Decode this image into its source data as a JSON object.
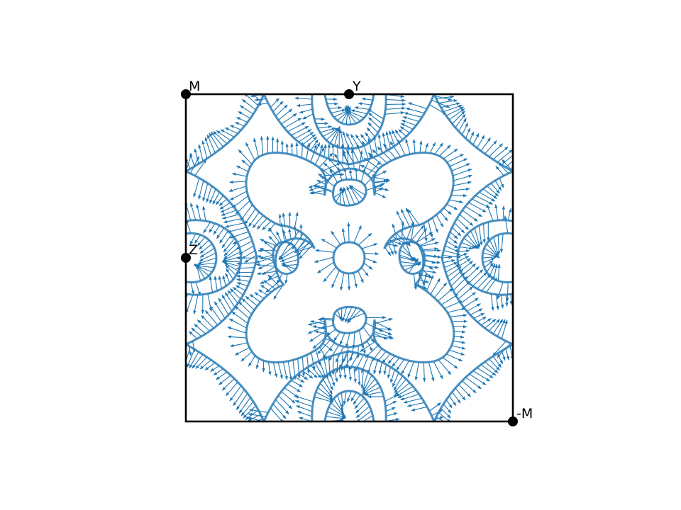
{
  "diagram": {
    "kind": "Fermi surface with spin texture in 2D Brillouin zone",
    "line_color": "#1f77b4",
    "frame_color": "#000000",
    "k_points": [
      {
        "label": "M"
      },
      {
        "label": "Y"
      },
      {
        "label": "Z"
      },
      {
        "label": "-M"
      }
    ]
  }
}
